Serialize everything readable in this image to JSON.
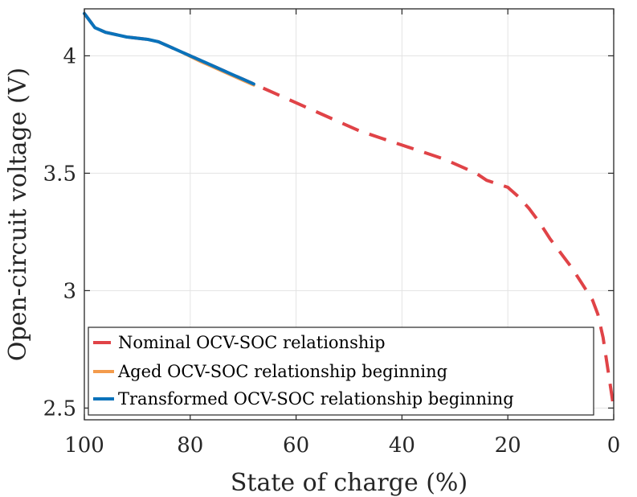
{
  "chart_data": {
    "type": "line",
    "title": "",
    "xlabel": "State of charge (%)",
    "ylabel": "Open-circuit voltage (V)",
    "xlim": [
      100,
      0
    ],
    "x_reversed": true,
    "ylim": [
      2.45,
      4.2
    ],
    "grid": true,
    "x_ticks": [
      100,
      80,
      60,
      40,
      20,
      0
    ],
    "x_tick_labels": [
      "100",
      "80",
      "60",
      "40",
      "20",
      "0"
    ],
    "y_ticks": [
      2.5,
      3,
      3.5,
      4
    ],
    "y_tick_labels": [
      "2.5",
      "3",
      "3.5",
      "4"
    ],
    "legend_position": "bottom-left",
    "series": [
      {
        "name": "Nominal OCV-SOC relationship",
        "color": "#E04347",
        "style": "dashed",
        "x": [
          100,
          98,
          96,
          94,
          92,
          90,
          88,
          86,
          84,
          82,
          80,
          78,
          76,
          74,
          72,
          70,
          68,
          64,
          60,
          56,
          52,
          48,
          44,
          40,
          36,
          32,
          28,
          26,
          24,
          22,
          20,
          18,
          16,
          14,
          12,
          10,
          8,
          6,
          4,
          3,
          2,
          1,
          0
        ],
        "values": [
          4.18,
          4.12,
          4.1,
          4.09,
          4.08,
          4.075,
          4.07,
          4.06,
          4.04,
          4.02,
          4.0,
          3.98,
          3.96,
          3.94,
          3.92,
          3.9,
          3.88,
          3.84,
          3.8,
          3.76,
          3.72,
          3.68,
          3.65,
          3.62,
          3.59,
          3.56,
          3.52,
          3.5,
          3.47,
          3.455,
          3.44,
          3.4,
          3.35,
          3.29,
          3.22,
          3.16,
          3.1,
          3.03,
          2.96,
          2.9,
          2.8,
          2.65,
          2.5
        ]
      },
      {
        "name": "Aged OCV-SOC relationship beginning",
        "color": "#F39B4C",
        "style": "solid",
        "x": [
          100,
          98,
          96,
          94,
          92,
          90,
          88,
          86,
          84,
          82,
          80,
          78,
          76,
          74,
          72,
          70,
          68
        ],
        "values": [
          4.18,
          4.12,
          4.1,
          4.09,
          4.08,
          4.075,
          4.07,
          4.06,
          4.04,
          4.02,
          3.997,
          3.975,
          3.955,
          3.935,
          3.915,
          3.895,
          3.875
        ]
      },
      {
        "name": "Transformed OCV-SOC relationship beginning",
        "color": "#0A72BA",
        "style": "solid",
        "x": [
          100,
          98,
          96,
          94,
          92,
          90,
          88,
          86,
          84,
          82,
          80,
          78,
          76,
          74,
          72,
          70,
          68
        ],
        "values": [
          4.18,
          4.12,
          4.1,
          4.09,
          4.08,
          4.075,
          4.07,
          4.06,
          4.04,
          4.02,
          4.0,
          3.98,
          3.96,
          3.94,
          3.92,
          3.9,
          3.88
        ]
      }
    ]
  }
}
